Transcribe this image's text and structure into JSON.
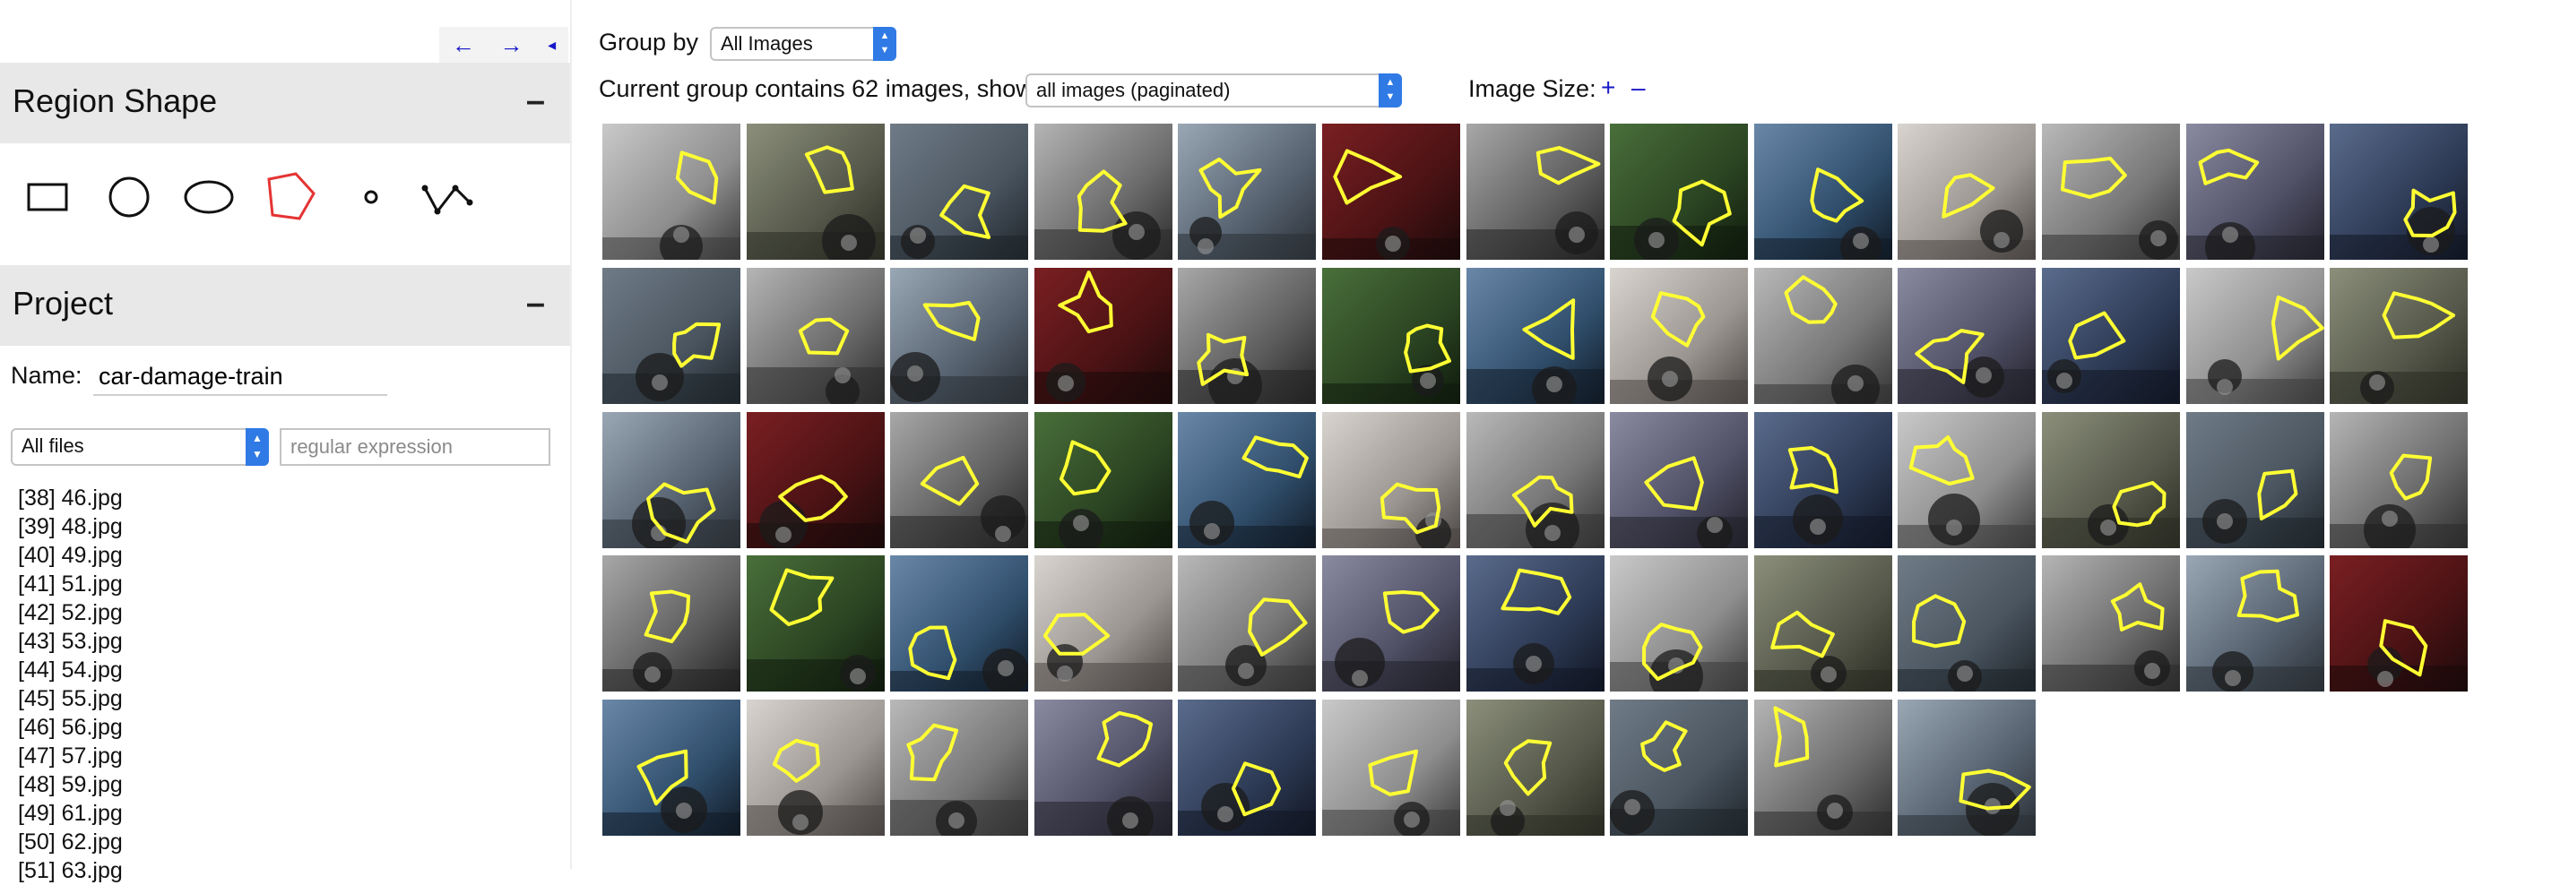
{
  "nav": {
    "prev": "←",
    "next": "→",
    "collapse": "◂"
  },
  "region_shape": {
    "title": "Region Shape",
    "toggle": "–",
    "shapes": [
      "rectangle-icon",
      "circle-icon",
      "ellipse-icon",
      "polygon-icon",
      "point-icon",
      "polyline-icon"
    ],
    "selected": "polygon-icon",
    "selected_color": "#e53333"
  },
  "project": {
    "title": "Project",
    "toggle": "–",
    "name_label": "Name:",
    "name_value": "car-damage-train",
    "filter_select": "All files",
    "regex_placeholder": "regular expression",
    "files": [
      "[38] 46.jpg",
      "[39] 48.jpg",
      "[40] 49.jpg",
      "[41] 51.jpg",
      "[42] 52.jpg",
      "[43] 53.jpg",
      "[44] 54.jpg",
      "[45] 55.jpg",
      "[46] 56.jpg",
      "[47] 57.jpg",
      "[48] 59.jpg",
      "[49] 61.jpg",
      "[50] 62.jpg",
      "[51] 63.jpg"
    ]
  },
  "toolbar": {
    "group_by_label": "Group by",
    "group_by_value": "All Images",
    "current_group_text": "Current group contains 62 images, show",
    "show_value": "all images (paginated)",
    "image_size_label": "Image Size:",
    "plus": "+",
    "minus": "–"
  },
  "grid": {
    "columns": 13,
    "image_count": 62,
    "annotation_color": "#ffff33"
  }
}
